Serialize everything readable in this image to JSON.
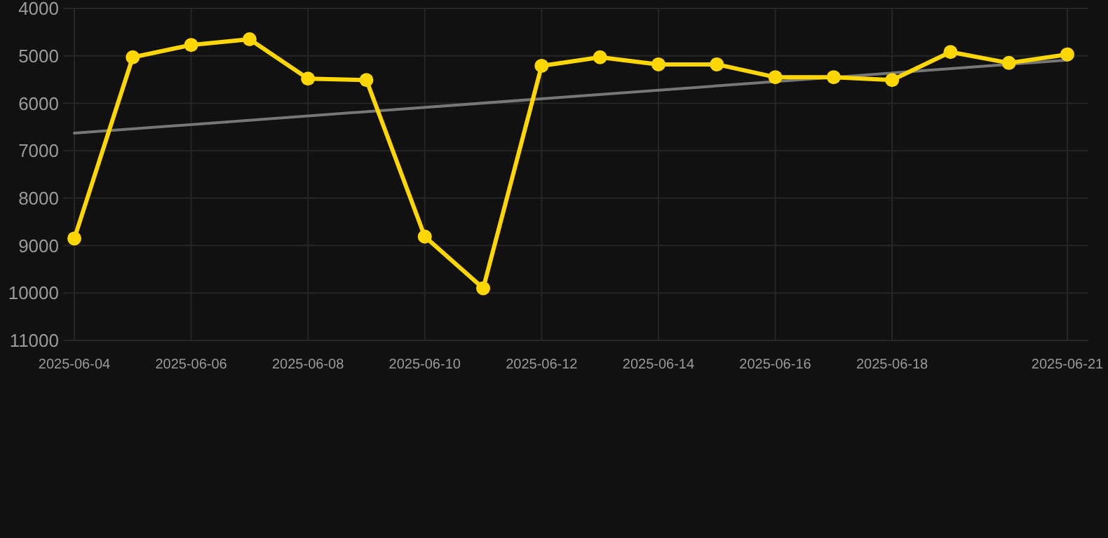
{
  "chart_data": {
    "type": "line",
    "x": [
      "2025-06-04",
      "2025-06-05",
      "2025-06-06",
      "2025-06-07",
      "2025-06-08",
      "2025-06-09",
      "2025-06-10",
      "2025-06-11",
      "2025-06-12",
      "2025-06-13",
      "2025-06-14",
      "2025-06-15",
      "2025-06-16",
      "2025-06-17",
      "2025-06-18",
      "2025-06-19",
      "2025-06-20",
      "2025-06-21"
    ],
    "series": [
      {
        "color": "#ffd700",
        "marker": "circle",
        "values": [
          8850,
          5030,
          4770,
          4650,
          5480,
          5510,
          8810,
          9900,
          5210,
          5030,
          5180,
          5180,
          5450,
          5450,
          5510,
          4920,
          5150,
          4970
        ]
      },
      {
        "type": "line",
        "color": "#777777",
        "marker": "none",
        "x": [
          "2025-06-04",
          "2025-06-21"
        ],
        "values": [
          6630,
          5090
        ]
      }
    ],
    "ylim": [
      11000,
      4000
    ],
    "yticks": [
      4000,
      5000,
      6000,
      7000,
      8000,
      9000,
      10000,
      11000
    ],
    "xlim": [
      "2025-06-04",
      "2025-06-21"
    ],
    "xticks": [
      "2025-06-04",
      "2025-06-06",
      "2025-06-08",
      "2025-06-10",
      "2025-06-12",
      "2025-06-14",
      "2025-06-16",
      "2025-06-18",
      "2025-06-21"
    ],
    "grid": true,
    "line_style": "solid"
  }
}
